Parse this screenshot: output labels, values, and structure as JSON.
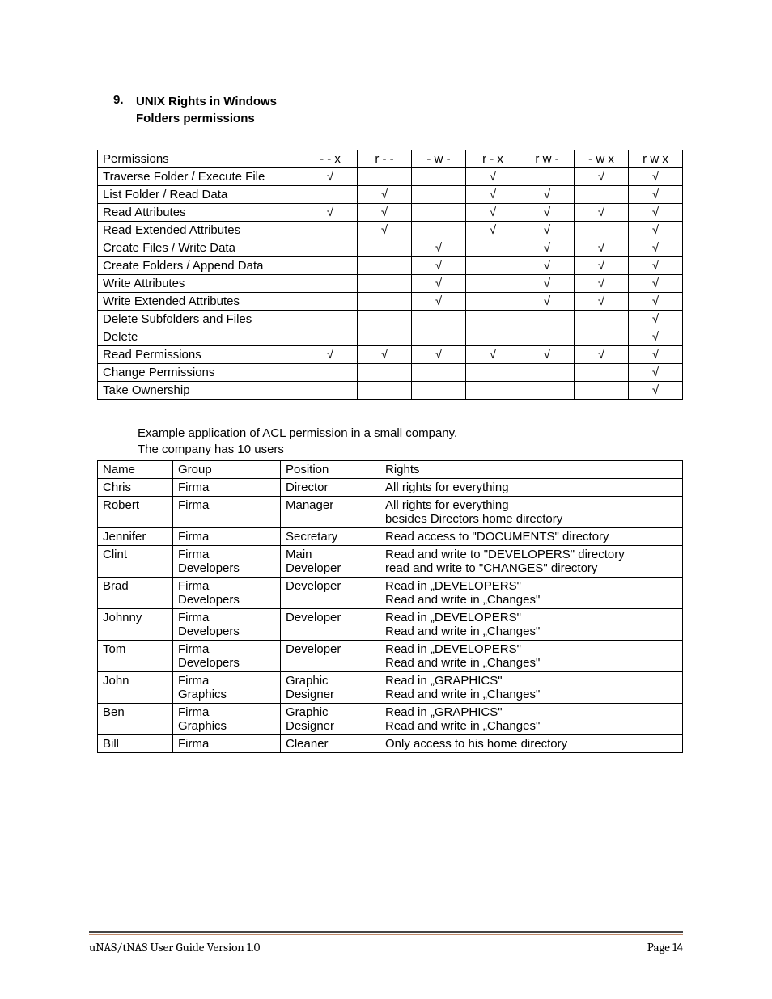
{
  "heading": {
    "number": "9.",
    "line1": "UNIX Rights in Windows",
    "line2": "Folders permissions"
  },
  "perm_table": {
    "head": "Permissions",
    "modes": [
      "- - x",
      "r - -",
      "- w -",
      "r - x",
      "r w -",
      "- w x",
      "r w x"
    ],
    "rows": [
      {
        "label": "Traverse Folder / Execute File",
        "checks": [
          true,
          false,
          false,
          true,
          false,
          true,
          true
        ]
      },
      {
        "label": "List Folder / Read Data",
        "checks": [
          false,
          true,
          false,
          true,
          true,
          false,
          true
        ]
      },
      {
        "label": "Read Attributes",
        "checks": [
          true,
          true,
          false,
          true,
          true,
          true,
          true
        ]
      },
      {
        "label": "Read Extended Attributes",
        "checks": [
          false,
          true,
          false,
          true,
          true,
          false,
          true
        ]
      },
      {
        "label": "Create Files / Write Data",
        "checks": [
          false,
          false,
          true,
          false,
          true,
          true,
          true
        ]
      },
      {
        "label": "Create Folders / Append Data",
        "checks": [
          false,
          false,
          true,
          false,
          true,
          true,
          true
        ]
      },
      {
        "label": "Write Attributes",
        "checks": [
          false,
          false,
          true,
          false,
          true,
          true,
          true
        ]
      },
      {
        "label": "Write Extended Attributes",
        "checks": [
          false,
          false,
          true,
          false,
          true,
          true,
          true
        ]
      },
      {
        "label": "Delete Subfolders and Files",
        "checks": [
          false,
          false,
          false,
          false,
          false,
          false,
          true
        ]
      },
      {
        "label": "Delete",
        "checks": [
          false,
          false,
          false,
          false,
          false,
          false,
          true
        ]
      },
      {
        "label": "Read Permissions",
        "checks": [
          true,
          true,
          true,
          true,
          true,
          true,
          true
        ]
      },
      {
        "label": "Change Permissions",
        "checks": [
          false,
          false,
          false,
          false,
          false,
          false,
          true
        ]
      },
      {
        "label": "Take Ownership",
        "checks": [
          false,
          false,
          false,
          false,
          false,
          false,
          true
        ]
      }
    ]
  },
  "example": {
    "line1": "Example application of ACL permission in a small company.",
    "line2": "The company has 10 users"
  },
  "users_table": {
    "headers": [
      "Name",
      "Group",
      "Position",
      "Rights"
    ],
    "rows": [
      {
        "name": "Chris",
        "group": [
          "Firma"
        ],
        "position": [
          "Director"
        ],
        "rights": [
          "All rights for everything"
        ]
      },
      {
        "name": "Robert",
        "group": [
          "Firma"
        ],
        "position": [
          "Manager"
        ],
        "rights": [
          "All rights for everything",
          "besides Directors home directory"
        ]
      },
      {
        "name": "Jennifer",
        "group": [
          "Firma"
        ],
        "position": [
          "Secretary"
        ],
        "rights": [
          "Read access to \"DOCUMENTS\" directory"
        ]
      },
      {
        "name": "Clint",
        "group": [
          "Firma",
          "Developers"
        ],
        "position": [
          "Main",
          "Developer"
        ],
        "rights": [
          "Read and write to \"DEVELOPERS\" directory",
          "read and write to \"CHANGES\" directory"
        ]
      },
      {
        "name": "Brad",
        "group": [
          "Firma",
          "Developers"
        ],
        "position": [
          "Developer"
        ],
        "rights": [
          "Read in „DEVELOPERS\"",
          "Read and write in „Changes\""
        ]
      },
      {
        "name": "Johnny",
        "group": [
          "Firma",
          "Developers"
        ],
        "position": [
          "Developer"
        ],
        "rights": [
          "Read in „DEVELOPERS\"",
          "Read and write in „Changes\""
        ]
      },
      {
        "name": "Tom",
        "group": [
          "Firma",
          "Developers"
        ],
        "position": [
          "Developer"
        ],
        "rights": [
          "Read in „DEVELOPERS\"",
          "Read and write in „Changes\""
        ]
      },
      {
        "name": "John",
        "group": [
          "Firma",
          "Graphics"
        ],
        "position": [
          "Graphic",
          "Designer"
        ],
        "rights": [
          "Read in „GRAPHICS\"",
          "Read and write in „Changes\""
        ]
      },
      {
        "name": "Ben",
        "group": [
          "Firma",
          "Graphics"
        ],
        "position": [
          "Graphic",
          "Designer"
        ],
        "rights": [
          "Read in „GRAPHICS\"",
          "Read and write in „Changes\""
        ]
      },
      {
        "name": "Bill",
        "group": [
          "Firma"
        ],
        "position": [
          "Cleaner"
        ],
        "rights": [
          "Only access to his home directory"
        ]
      }
    ]
  },
  "footer": {
    "left": "uNAS/tNAS User Guide Version 1.0",
    "right": "Page 14"
  },
  "check_glyph": "√"
}
